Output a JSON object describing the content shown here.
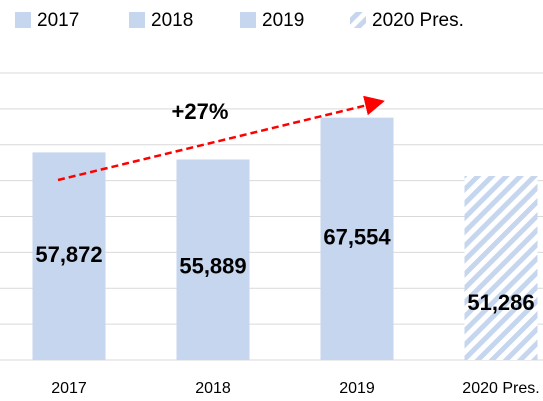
{
  "chart_data": {
    "type": "bar",
    "legend": [
      "2017",
      "2018",
      "2019",
      "2020 Pres."
    ],
    "categories": [
      "2017",
      "2018",
      "2019",
      "2020 Pres."
    ],
    "values": [
      57872,
      55889,
      67554,
      51286
    ],
    "value_labels": [
      "57,872",
      "55,889",
      "67,554",
      "51,286"
    ],
    "color": "#c5d6ee",
    "hatched": [
      false,
      false,
      false,
      true
    ],
    "ylim": [
      0,
      80000
    ],
    "yticks": [
      0,
      10000,
      20000,
      30000,
      40000,
      50000,
      60000,
      70000,
      80000
    ],
    "grid": true,
    "annotation": {
      "text": "+27%",
      "color": "#ff0000"
    }
  }
}
